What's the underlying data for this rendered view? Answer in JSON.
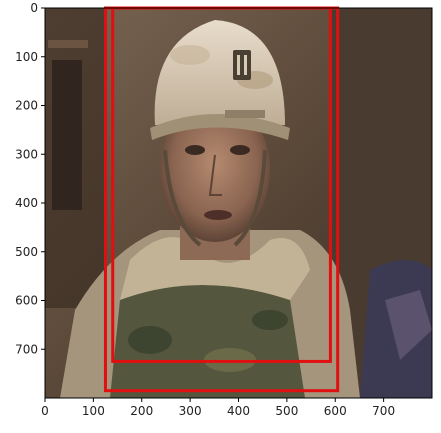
{
  "image": {
    "description_icon": "soldier-photo",
    "x_range": [
      0,
      800
    ],
    "y_range": [
      800,
      0
    ],
    "x_ticks": [
      "0",
      "100",
      "200",
      "300",
      "400",
      "500",
      "600",
      "700"
    ],
    "y_ticks": [
      "0",
      "100",
      "200",
      "300",
      "400",
      "500",
      "600",
      "700"
    ],
    "x_tick_values": [
      0,
      100,
      200,
      300,
      400,
      500,
      600,
      700
    ],
    "y_tick_values": [
      0,
      100,
      200,
      300,
      400,
      500,
      600,
      700
    ],
    "boxes": [
      {
        "x0": 140,
        "y0": 0,
        "x1": 590,
        "y1": 725,
        "color": "#e01010"
      },
      {
        "x0": 125,
        "y0": 0,
        "x1": 605,
        "y1": 785,
        "color": "#e01010"
      }
    ]
  }
}
